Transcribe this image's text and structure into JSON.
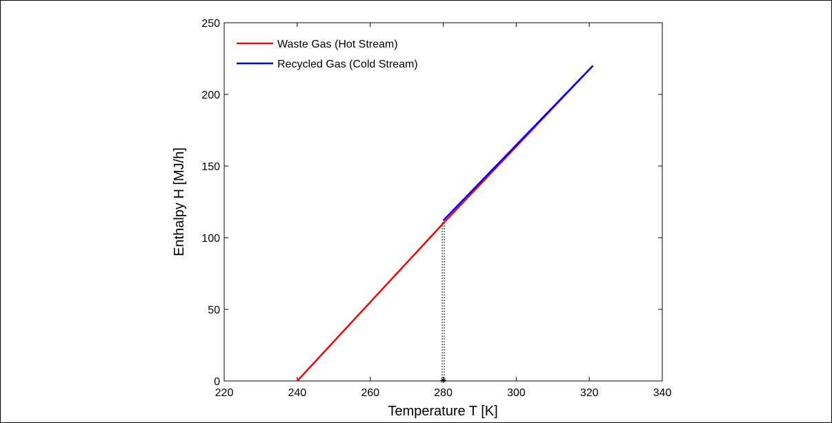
{
  "chart_data": {
    "type": "line",
    "title": "",
    "xlabel": "Temperature T [K]",
    "ylabel": "Enthalpy H [MJ/h]",
    "xlim": [
      220,
      340
    ],
    "ylim": [
      0,
      250
    ],
    "xticks": [
      220,
      240,
      260,
      280,
      300,
      320,
      340
    ],
    "yticks": [
      0,
      50,
      100,
      150,
      200,
      250
    ],
    "grid": false,
    "legend_position": "top-left",
    "series": [
      {
        "name": "Waste Gas (Hot Stream)",
        "color": "#ff0000",
        "x": [
          240,
          280,
          321
        ],
        "y": [
          0,
          110,
          220
        ]
      },
      {
        "name": "Recycled Gas (Cold Stream)",
        "color": "#0000ff",
        "x": [
          280,
          321
        ],
        "y": [
          112,
          220
        ]
      }
    ],
    "annotations": [
      {
        "type": "dashed-drop-line",
        "x": 280,
        "y_from": 0,
        "y_to": 111,
        "color": "#000000",
        "marker": "star"
      }
    ]
  }
}
